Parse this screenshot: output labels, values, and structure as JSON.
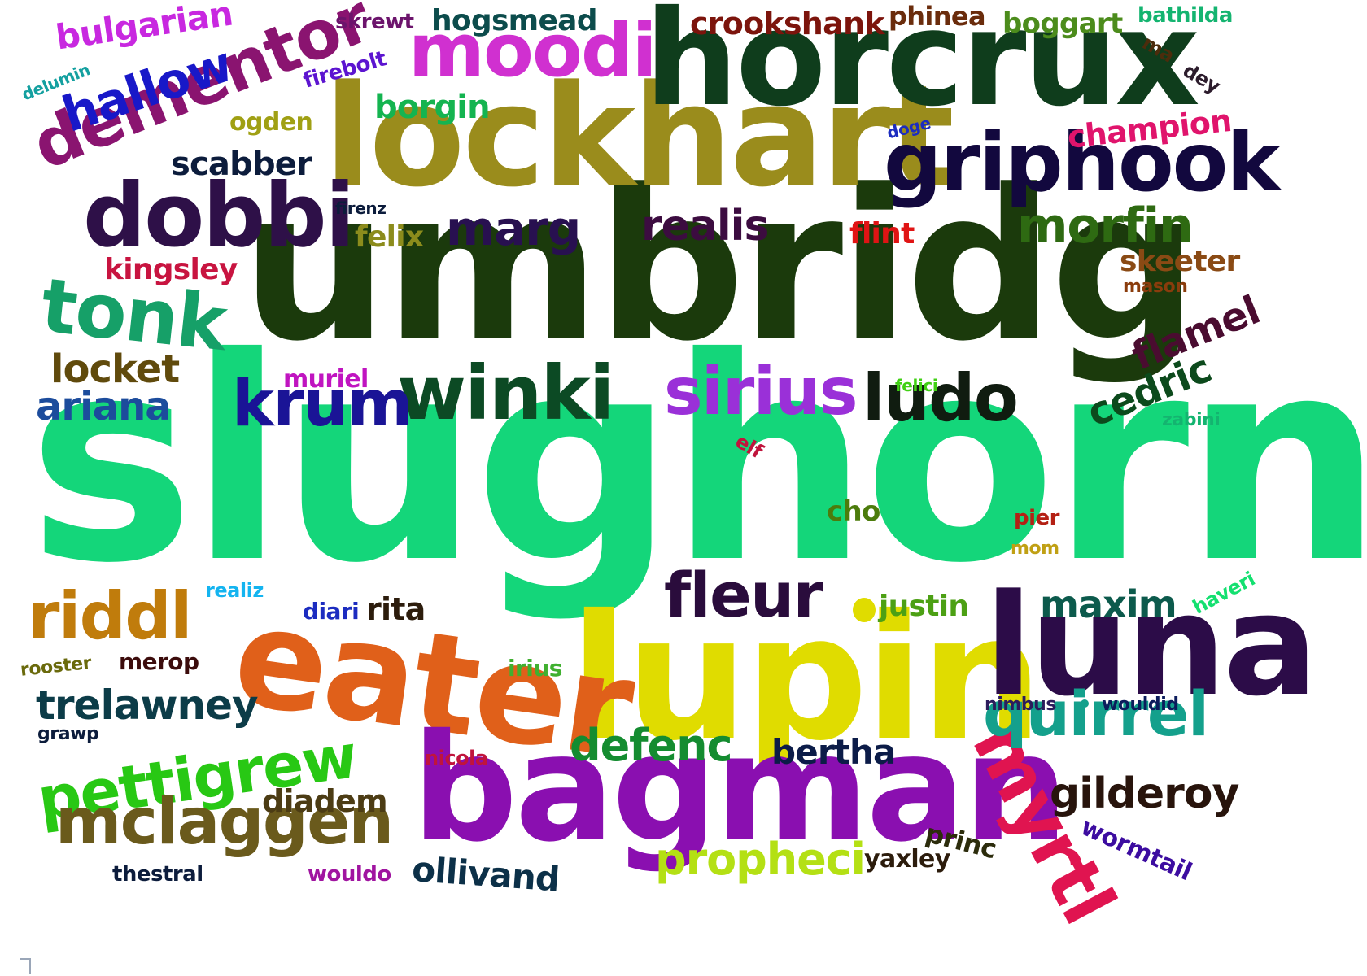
{
  "words": [
    {
      "text": "slughorn",
      "color": "#14d67a"
    },
    {
      "text": "umbridg",
      "color": "#1b3a0c"
    },
    {
      "text": "lupin",
      "color": "#e0dc00"
    },
    {
      "text": "lockhart",
      "color": "#9a8c1c"
    },
    {
      "text": "horcrux",
      "color": "#0f3d1c"
    },
    {
      "text": "eater",
      "color": "#e0601a"
    },
    {
      "text": "bagman",
      "color": "#8a0fb0"
    },
    {
      "text": "luna",
      "color": "#2c0c48"
    },
    {
      "text": "dobbi",
      "color": "#2e1048"
    },
    {
      "text": "moodi",
      "color": "#d030d0"
    },
    {
      "text": "griphook",
      "color": "#12083e"
    },
    {
      "text": "dementor",
      "color": "#8a1470"
    },
    {
      "text": "tonk",
      "color": "#16a068"
    },
    {
      "text": "winki",
      "color": "#0c4a24"
    },
    {
      "text": "sirius",
      "color": "#9a30d8"
    },
    {
      "text": "ludo",
      "color": "#101c10"
    },
    {
      "text": "krum",
      "color": "#1a1496"
    },
    {
      "text": "fleur",
      "color": "#2a0c3c"
    },
    {
      "text": "riddl",
      "color": "#c07c0c"
    },
    {
      "text": "pettigrew",
      "color": "#28c814"
    },
    {
      "text": "mclaggen",
      "color": "#6a5a1c"
    },
    {
      "text": "myrtl",
      "color": "#e01450"
    },
    {
      "text": "quirrel",
      "color": "#14a08c"
    },
    {
      "text": "hallow",
      "color": "#1818c8"
    },
    {
      "text": "morfin",
      "color": "#2e6a12"
    },
    {
      "text": "realis",
      "color": "#3c0c40"
    },
    {
      "text": "marg",
      "color": "#281050"
    },
    {
      "text": "defenc",
      "color": "#148c30"
    },
    {
      "text": "propheci",
      "color": "#b4e014"
    },
    {
      "text": "gilderoy",
      "color": "#28140c"
    },
    {
      "text": "trelawney",
      "color": "#0c3c48"
    },
    {
      "text": "maxim",
      "color": "#0c5a4c"
    },
    {
      "text": "ariana",
      "color": "#1c4c9c"
    },
    {
      "text": "locket",
      "color": "#604a0c"
    },
    {
      "text": "cedric",
      "color": "#0c4a1c"
    },
    {
      "text": "flamel",
      "color": "#4a0c30"
    },
    {
      "text": "bulgarian",
      "color": "#c828e0"
    },
    {
      "text": "bertha",
      "color": "#0c1c48"
    },
    {
      "text": "diadem",
      "color": "#4c3c14"
    },
    {
      "text": "ollivand",
      "color": "#0c3048"
    },
    {
      "text": "crookshank",
      "color": "#7c140c"
    },
    {
      "text": "champion",
      "color": "#e0146c"
    },
    {
      "text": "borgin",
      "color": "#14b450"
    },
    {
      "text": "scabber",
      "color": "#0c1c3c"
    },
    {
      "text": "kingsley",
      "color": "#c81440"
    },
    {
      "text": "hogsmead",
      "color": "#0c4c4c"
    },
    {
      "text": "felix",
      "color": "#8c8c1c"
    },
    {
      "text": "skeeter",
      "color": "#8a4a14"
    },
    {
      "text": "justin",
      "color": "#4ca014"
    },
    {
      "text": "rita",
      "color": "#2c1c0c"
    },
    {
      "text": "boggart",
      "color": "#4c8c1c"
    },
    {
      "text": "phinea",
      "color": "#6a2c0c"
    },
    {
      "text": "flint",
      "color": "#e01414"
    },
    {
      "text": "cho",
      "color": "#4c7c0c"
    },
    {
      "text": "wormtail",
      "color": "#3c0ca0"
    },
    {
      "text": "princ",
      "color": "#2c2c0c"
    },
    {
      "text": "yaxley",
      "color": "#2c1c0c"
    },
    {
      "text": "muriel",
      "color": "#c014c0"
    },
    {
      "text": "ogden",
      "color": "#a0a014"
    },
    {
      "text": "merop",
      "color": "#3c0c0c"
    },
    {
      "text": "diari",
      "color": "#1c2cc0"
    },
    {
      "text": "irius",
      "color": "#40b030"
    },
    {
      "text": "skrewt",
      "color": "#6c146c"
    },
    {
      "text": "firebolt",
      "color": "#5c14d0"
    },
    {
      "text": "bathilda",
      "color": "#14b470"
    },
    {
      "text": "wouldo",
      "color": "#a014a0"
    },
    {
      "text": "thestral",
      "color": "#0c1c3c"
    },
    {
      "text": "nicola",
      "color": "#c0143c"
    },
    {
      "text": "rooster",
      "color": "#6a6a0c"
    },
    {
      "text": "pier",
      "color": "#b42014"
    },
    {
      "text": "mom",
      "color": "#c0a014"
    },
    {
      "text": "haveri",
      "color": "#14e070"
    },
    {
      "text": "realiz",
      "color": "#14b4f0"
    },
    {
      "text": "elf",
      "color": "#c0143c"
    },
    {
      "text": "ma",
      "color": "#4c2c0c"
    },
    {
      "text": "dey",
      "color": "#2c1c2c"
    },
    {
      "text": "nimbus",
      "color": "#2c1c5c"
    },
    {
      "text": "wouldid",
      "color": "#0c1c5c"
    },
    {
      "text": "grawp",
      "color": "#0c1c3c"
    },
    {
      "text": "mason",
      "color": "#8a3c0c"
    },
    {
      "text": "zabini",
      "color": "#14b470"
    },
    {
      "text": "felici",
      "color": "#40d014"
    },
    {
      "text": "doge",
      "color": "#1c2cc0"
    },
    {
      "text": "firenz",
      "color": "#0c1c3c"
    },
    {
      "text": "delumin",
      "color": "#14a0a0"
    }
  ]
}
